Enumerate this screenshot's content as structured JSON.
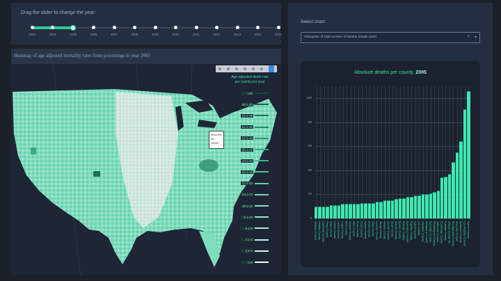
{
  "slider": {
    "label": "Drag the slider to change the year:",
    "years": [
      "2003",
      "2004",
      "2005",
      "2006",
      "2007",
      "2008",
      "2009",
      "2010",
      "2011",
      "2012",
      "2013",
      "2014",
      "2015"
    ],
    "selected": "2005",
    "accent": "#2ecc9a"
  },
  "map": {
    "title": "Heatmap of age adjusted mortality rates from poisonings in year 2005",
    "legend_title_line1": "Age-adjusted death rate",
    "legend_title_line2": "per county per year",
    "legend": [
      {
        "label": ">30",
        "color": "#0c4f3b"
      },
      {
        "label": "28.1-30",
        "color": "#136148"
      },
      {
        "label": "26.1-28",
        "color": "#1b7357"
      },
      {
        "label": "24.1-26",
        "color": "#238565"
      },
      {
        "label": "22.1-24",
        "color": "#2c9774"
      },
      {
        "label": "20.1-22",
        "color": "#35a983"
      },
      {
        "label": "18.1-20",
        "color": "#3ebb92"
      },
      {
        "label": "16.1-18",
        "color": "#4ccaa0"
      },
      {
        "label": "14.1-16",
        "color": "#5ed2ab"
      },
      {
        "label": "12.1-14",
        "color": "#72d9b6"
      },
      {
        "label": "10.1-12",
        "color": "#87e0c2"
      },
      {
        "label": "8.1-10",
        "color": "#9de6ce"
      },
      {
        "label": "6.1-8",
        "color": "#b3ecda"
      },
      {
        "label": "4.1-6",
        "color": "#c9f2e5"
      },
      {
        "label": "2.1-4",
        "color": "#dff7ef"
      },
      {
        "label": "0-2",
        "color": "#f4fcf9"
      }
    ],
    "tooltip": {
      "line1": "Macomb",
      "line2": "MI",
      "line3": "26099"
    }
  },
  "chart_select": {
    "label": "Select chart:",
    "value": "Histogram of total number of deaths (single year)",
    "clear_icon": "×",
    "arrow_icon": "▾"
  },
  "chart_data": {
    "type": "bar",
    "title": "Absolute deaths per county,",
    "title_year": "2005",
    "xlabel": "",
    "ylabel": "",
    "ylim": [
      0,
      110
    ],
    "yticks": [
      0,
      20,
      40,
      60,
      80,
      100
    ],
    "grid": true,
    "categories": [
      "Hidalgo County",
      "Whitley County",
      "Clermont County",
      "Perry County",
      "Wise County",
      "Carter County",
      "Laurel County",
      "Logan County",
      "Bell County",
      "Greene County",
      "Pike County",
      "Knox County",
      "Floyd County",
      "Harlan County",
      "Boyd County",
      "Clay County",
      "Letcher County",
      "Mingo County",
      "Wayne County",
      "Lincoln County",
      "Scott County",
      "Marion County",
      "Boone County",
      "Raleigh County",
      "Kanawha County",
      "Fayette County",
      "Cabell County",
      "Lee County",
      "Hamilton County",
      "Allegheny County",
      "Bernalillo County",
      "Philadelphia County",
      "Jefferson County",
      "Cuyahoga County",
      "Franklin County",
      "Wayne County MI",
      "Montgomery County",
      "Macomb County",
      "Baltimore County",
      "Los Angeles County",
      "Harris County"
    ],
    "values": [
      10,
      10,
      10,
      10,
      11,
      11,
      11,
      12,
      12,
      12,
      12,
      12,
      13,
      13,
      13,
      13,
      14,
      14,
      15,
      15,
      15,
      16,
      17,
      17,
      18,
      18,
      19,
      19,
      20,
      20,
      21,
      22,
      23,
      34,
      35,
      37,
      47,
      55,
      64,
      91,
      106
    ],
    "bar_color": "#3ee8b0"
  }
}
